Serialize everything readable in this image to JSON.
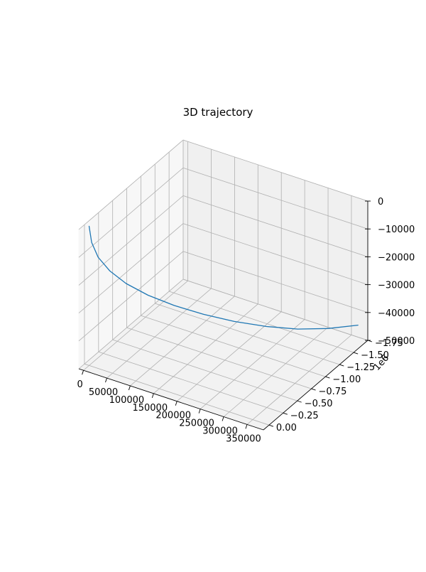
{
  "chart_data": {
    "type": "line",
    "projection": "3d",
    "title": "3D trajectory",
    "xlabel": "",
    "ylabel": "",
    "zlabel": "",
    "grid": true,
    "legend": "none",
    "xlim": [
      -10000,
      385000
    ],
    "ylim": [
      -1750000,
      100000
    ],
    "zlim": [
      -50000,
      0
    ],
    "x_ticks": [
      0,
      50000,
      100000,
      150000,
      200000,
      250000,
      300000,
      350000
    ],
    "x_tick_labels": [
      "0",
      "50000",
      "100000",
      "150000",
      "200000",
      "250000",
      "300000",
      "350000"
    ],
    "y_ticks": [
      0,
      -250000,
      -500000,
      -750000,
      -1000000,
      -1250000,
      -1500000,
      -1750000
    ],
    "y_tick_labels": [
      "0.00",
      "−0.25",
      "−0.50",
      "−0.75",
      "−1.00",
      "−1.25",
      "−1.50",
      "−1.75"
    ],
    "y_offset_label": "1e6",
    "z_ticks": [
      0,
      -10000,
      -20000,
      -30000,
      -40000,
      -50000
    ],
    "z_tick_labels": [
      "0",
      "−10000",
      "−20000",
      "−30000",
      "−40000",
      "−50000"
    ],
    "series": [
      {
        "color": "#1f77b4",
        "x": [
          0,
          3000,
          12000,
          30000,
          55000,
          90000,
          130000,
          175000,
          220000,
          265000,
          305000,
          340000,
          370000
        ],
        "y": [
          0,
          -20000,
          -60000,
          -120000,
          -200000,
          -300000,
          -430000,
          -580000,
          -750000,
          -950000,
          -1170000,
          -1420000,
          -1700000
        ],
        "z": [
          0,
          -6000,
          -11500,
          -16500,
          -21000,
          -25000,
          -28700,
          -32000,
          -35000,
          -37800,
          -40300,
          -42500,
          -44500
        ]
      }
    ]
  }
}
